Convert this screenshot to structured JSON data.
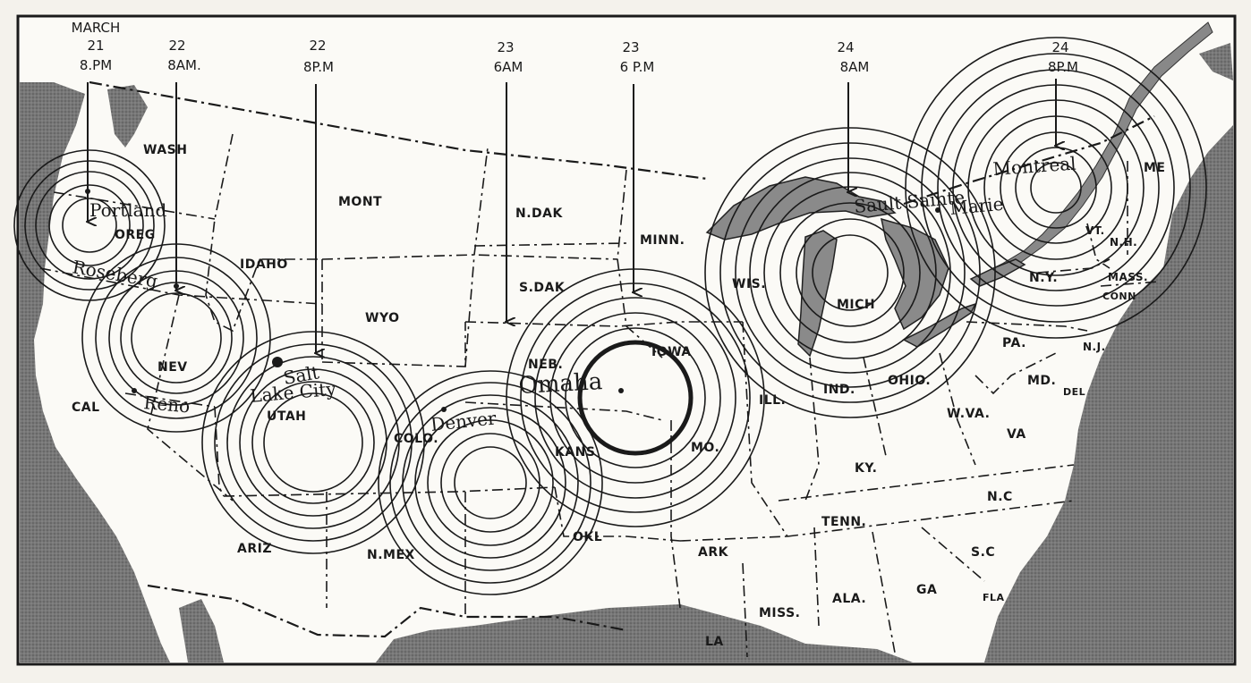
{
  "timestamps": [
    {
      "id": "ts1",
      "lines": [
        "MARCH",
        "21",
        "8.PM"
      ]
    },
    {
      "id": "ts2",
      "lines": [
        "22",
        "8AM."
      ]
    },
    {
      "id": "ts3",
      "lines": [
        "22",
        "8P.M"
      ]
    },
    {
      "id": "ts4",
      "lines": [
        "23",
        "6AM"
      ]
    },
    {
      "id": "ts5",
      "lines": [
        "23",
        "6 P.M"
      ]
    },
    {
      "id": "ts6",
      "lines": [
        "24",
        "8AM"
      ]
    },
    {
      "id": "ts7",
      "lines": [
        "24",
        "8P.M"
      ]
    }
  ],
  "cities": [
    "Portland",
    "Roseberg",
    "Reno",
    "Salt",
    "Lake City",
    "Denver",
    "Omaha",
    "Sault Sainte",
    "Marie",
    "Montreal"
  ],
  "states": [
    "WASH",
    "OREG",
    "CAL",
    "IDAHO",
    "NEV",
    "MONT",
    "WYO",
    "UTAH",
    "ARIZ",
    "COLO.",
    "N.MEX",
    "N.DAK",
    "S.DAK",
    "NEB.",
    "KANS",
    "OKL",
    "MINN.",
    "IOWA",
    "MO.",
    "ARK",
    "LA",
    "WIS.",
    "ILL.",
    "MICH",
    "IND.",
    "OHIO.",
    "KY.",
    "TENN.",
    "MISS.",
    "ALA.",
    "GA",
    "S.C",
    "N.C",
    "VA",
    "W.VA.",
    "PA.",
    "N.Y.",
    "MD.",
    "DEL",
    "N.J.",
    "CONN",
    "MASS.",
    "VT.",
    "N.H.",
    "ME",
    "FLA"
  ],
  "colors": {
    "paper": "#f4f2ec",
    "ink": "#1a1a1a",
    "water": "#6e6e6e",
    "land": "#fbfaf6"
  }
}
